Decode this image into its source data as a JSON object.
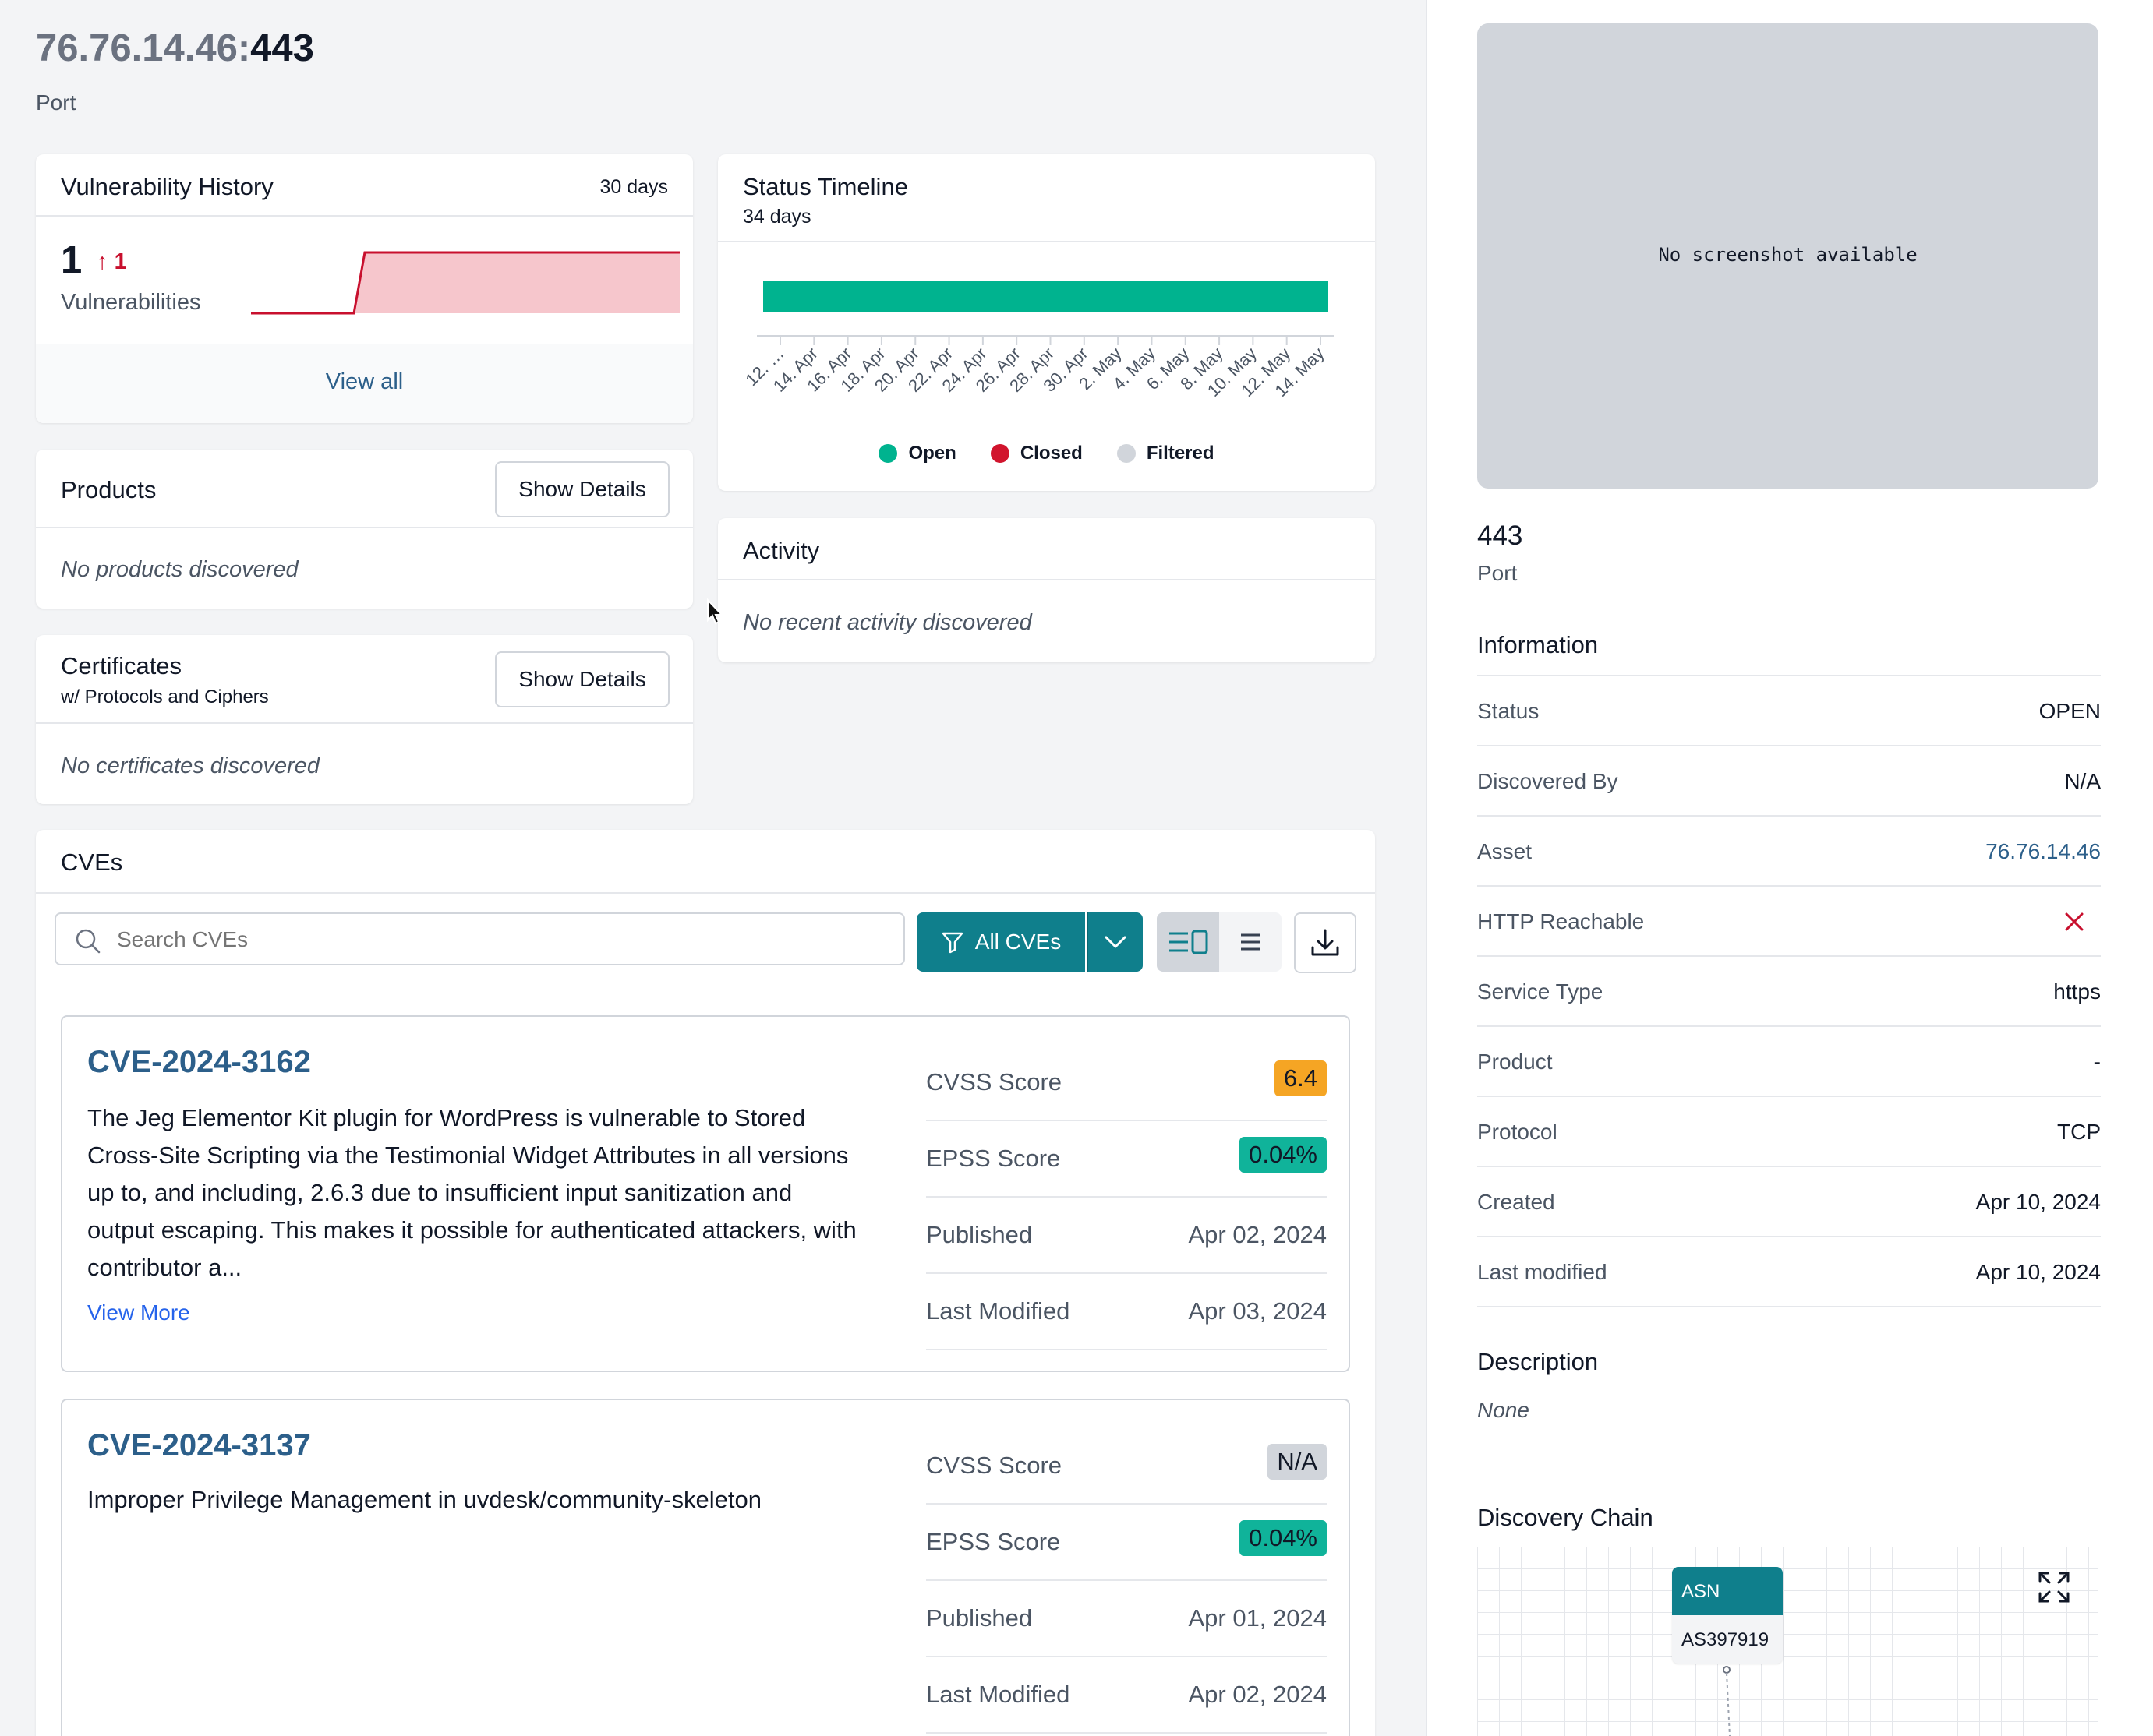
{
  "header": {
    "host": "76.76.14.46:",
    "port": "443",
    "subtitle": "Port"
  },
  "vuln_history": {
    "title": "Vulnerability History",
    "range": "30 days",
    "count": "1",
    "delta_arrow": "↑",
    "delta": "1",
    "label": "Vulnerabilities",
    "view_all": "View all"
  },
  "status_timeline": {
    "title": "Status Timeline",
    "range": "34 days",
    "dates": [
      "12. …",
      "14. Apr",
      "16. Apr",
      "18. Apr",
      "20. Apr",
      "22. Apr",
      "24. Apr",
      "26. Apr",
      "28. Apr",
      "30. Apr",
      "2. May",
      "4. May",
      "6. May",
      "8. May",
      "10. May",
      "12. May",
      "14. May"
    ],
    "legend": {
      "open": "Open",
      "closed": "Closed",
      "filtered": "Filtered"
    },
    "colors": {
      "open": "#00b38f",
      "closed": "#d1142d",
      "filtered": "#d1d5db"
    }
  },
  "products": {
    "title": "Products",
    "button": "Show Details",
    "empty": "No products discovered"
  },
  "certificates": {
    "title": "Certificates",
    "subtitle": "w/ Protocols and Ciphers",
    "button": "Show Details",
    "empty": "No certificates discovered"
  },
  "activity": {
    "title": "Activity",
    "empty": "No recent activity discovered"
  },
  "cves": {
    "title": "CVEs",
    "search_placeholder": "Search CVEs",
    "filter_label": "All CVEs",
    "items": [
      {
        "id": "CVE-2024-3162",
        "description_lines": [
          "The Jeg Elementor Kit plugin for WordPress is vulnerable to Stored",
          "Cross-Site Scripting via the Testimonial Widget Attributes in all versions",
          "up to, and including, 2.6.3 due to insufficient input sanitization and",
          "output escaping. This makes it possible for authenticated attackers, with",
          "contributor a..."
        ],
        "view_more": "View More",
        "cvss_label": "CVSS Score",
        "cvss": "6.4",
        "epss_label": "EPSS Score",
        "epss": "0.04%",
        "published_label": "Published",
        "published": "Apr 02, 2024",
        "modified_label": "Last Modified",
        "modified": "Apr 03, 2024"
      },
      {
        "id": "CVE-2024-3137",
        "description_lines": [
          "Improper Privilege Management in uvdesk/community-skeleton"
        ],
        "cvss_label": "CVSS Score",
        "cvss": "N/A",
        "epss_label": "EPSS Score",
        "epss": "0.04%",
        "published_label": "Published",
        "published": "Apr 01, 2024",
        "modified_label": "Last Modified",
        "modified": "Apr 02, 2024"
      }
    ]
  },
  "side": {
    "screenshot_text": "No screenshot available",
    "port": "443",
    "port_label": "Port",
    "info_title": "Information",
    "info": [
      {
        "k": "Status",
        "v": "OPEN"
      },
      {
        "k": "Discovered By",
        "v": "N/A"
      },
      {
        "k": "Asset",
        "v": "76.76.14.46"
      },
      {
        "k": "HTTP Reachable",
        "v": ""
      },
      {
        "k": "Service Type",
        "v": "https"
      },
      {
        "k": "Product",
        "v": "-"
      },
      {
        "k": "Protocol",
        "v": "TCP"
      },
      {
        "k": "Created",
        "v": "Apr 10, 2024"
      },
      {
        "k": "Last modified",
        "v": "Apr 10, 2024"
      }
    ],
    "description_title": "Description",
    "description": "None",
    "chain_title": "Discovery Chain",
    "chain_node_type": "ASN",
    "chain_node_value": "AS397919"
  }
}
